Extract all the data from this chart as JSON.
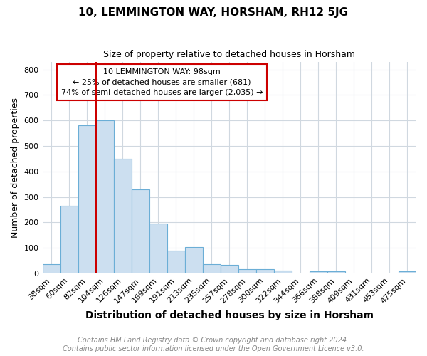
{
  "title": "10, LEMMINGTON WAY, HORSHAM, RH12 5JG",
  "subtitle": "Size of property relative to detached houses in Horsham",
  "xlabel": "Distribution of detached houses by size in Horsham",
  "ylabel": "Number of detached properties",
  "categories": [
    "38sqm",
    "60sqm",
    "82sqm",
    "104sqm",
    "126sqm",
    "147sqm",
    "169sqm",
    "191sqm",
    "213sqm",
    "235sqm",
    "257sqm",
    "278sqm",
    "300sqm",
    "322sqm",
    "344sqm",
    "366sqm",
    "388sqm",
    "409sqm",
    "431sqm",
    "453sqm",
    "475sqm"
  ],
  "values": [
    37,
    265,
    580,
    600,
    450,
    330,
    195,
    90,
    103,
    37,
    33,
    17,
    17,
    10,
    0,
    7,
    7,
    0,
    0,
    0,
    7
  ],
  "bar_color": "#ccdff0",
  "bar_edgecolor": "#6baed6",
  "vline_color": "#cc0000",
  "vline_x_idx": 3,
  "annotation_line1": "10 LEMMINGTON WAY: 98sqm",
  "annotation_line2": "← 25% of detached houses are smaller (681)",
  "annotation_line3": "74% of semi-detached houses are larger (2,035) →",
  "annotation_box_edgecolor": "#cc0000",
  "ylim": [
    0,
    830
  ],
  "yticks": [
    0,
    100,
    200,
    300,
    400,
    500,
    600,
    700,
    800
  ],
  "footnote_line1": "Contains HM Land Registry data © Crown copyright and database right 2024.",
  "footnote_line2": "Contains public sector information licensed under the Open Government Licence v3.0.",
  "bg_color": "#ffffff",
  "grid_color": "#d0d8e0",
  "title_fontsize": 11,
  "subtitle_fontsize": 9,
  "xlabel_fontsize": 10,
  "ylabel_fontsize": 9,
  "tick_fontsize": 8,
  "footnote_fontsize": 7
}
